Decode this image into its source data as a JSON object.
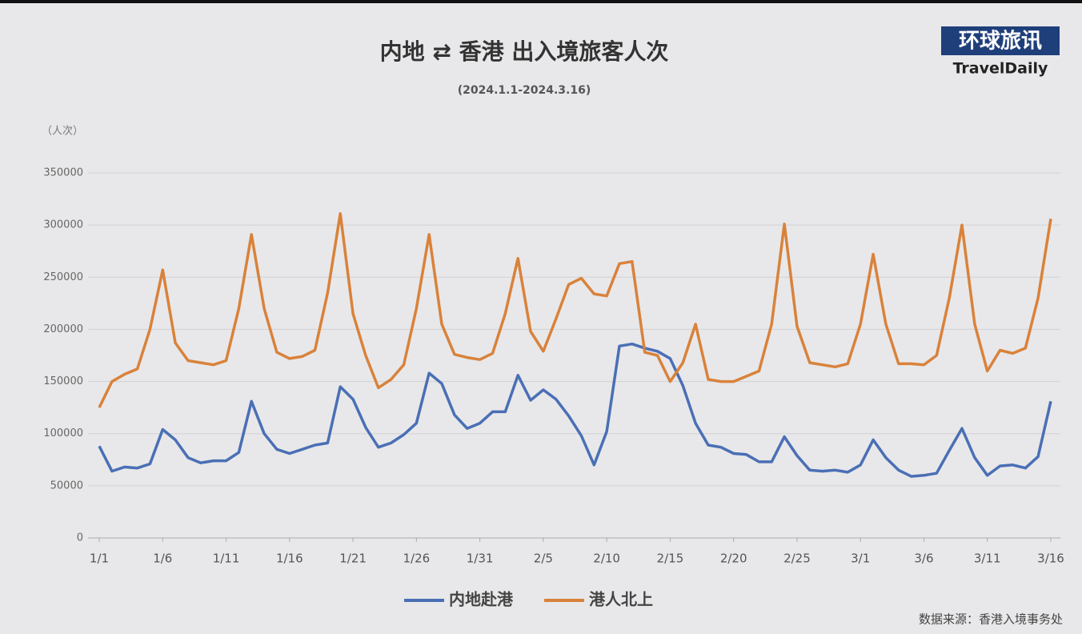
{
  "chart_data": {
    "type": "line",
    "title": "内地 ⇄ 香港 出入境旅客人次",
    "subtitle": "(2024.1.1-2024.3.16)",
    "y_label": "（人次）",
    "logo": "环球旅讯",
    "logo_subtitle": "TravelDaily",
    "source": "数据来源：香港入境事务处",
    "categories": [
      "1/1",
      null,
      null,
      null,
      null,
      "1/6",
      null,
      null,
      null,
      null,
      "1/11",
      null,
      null,
      null,
      null,
      "1/16",
      null,
      null,
      null,
      null,
      "1/21",
      null,
      null,
      null,
      null,
      "1/26",
      null,
      null,
      null,
      null,
      "1/31",
      null,
      null,
      null,
      null,
      "2/5",
      null,
      null,
      null,
      null,
      "2/10",
      null,
      null,
      null,
      null,
      "2/15",
      null,
      null,
      null,
      null,
      "2/20",
      null,
      null,
      null,
      null,
      "2/25",
      null,
      null,
      null,
      null,
      "3/1",
      null,
      null,
      null,
      null,
      "3/6",
      null,
      null,
      null,
      null,
      "3/11",
      null,
      null,
      null,
      null,
      "3/16"
    ],
    "series": [
      {
        "name": "内地赴港",
        "color": "#4a6fb5",
        "values": [
          88000,
          64000,
          68000,
          67000,
          71000,
          104000,
          94000,
          77000,
          72000,
          74000,
          74000,
          82000,
          131000,
          100000,
          85000,
          81000,
          85000,
          89000,
          91000,
          145000,
          133000,
          106000,
          87000,
          91000,
          99000,
          110000,
          158000,
          148000,
          118000,
          105000,
          110000,
          121000,
          121000,
          156000,
          132000,
          142000,
          133000,
          117000,
          98000,
          70000,
          102000,
          184000,
          186000,
          182000,
          179000,
          172000,
          146000,
          110000,
          89000,
          87000,
          81000,
          80000,
          73000,
          73000,
          97000,
          79000,
          65000,
          64000,
          65000,
          63000,
          70000,
          94000,
          77000,
          65000,
          59000,
          60000,
          62000,
          84000,
          105000,
          77000,
          60000,
          69000,
          70000,
          67000,
          78000,
          131000
        ]
      },
      {
        "name": "港人北上",
        "color": "#d9823b",
        "values": [
          125000,
          150000,
          157000,
          162000,
          200000,
          257000,
          187000,
          170000,
          168000,
          166000,
          170000,
          220000,
          291000,
          220000,
          178000,
          172000,
          174000,
          180000,
          235000,
          311000,
          215000,
          175000,
          144000,
          152000,
          166000,
          220000,
          291000,
          205000,
          176000,
          173000,
          171000,
          177000,
          215000,
          268000,
          198000,
          179000,
          210000,
          243000,
          249000,
          234000,
          232000,
          263000,
          265000,
          178000,
          175000,
          150000,
          168000,
          205000,
          152000,
          150000,
          150000,
          155000,
          160000,
          205000,
          301000,
          203000,
          168000,
          166000,
          164000,
          167000,
          205000,
          272000,
          205000,
          167000,
          167000,
          166000,
          175000,
          230000,
          300000,
          205000,
          160000,
          180000,
          177000,
          182000,
          230000,
          306000
        ]
      }
    ],
    "ylim": [
      0,
      350000
    ],
    "yticks": [
      0,
      50000,
      100000,
      150000,
      200000,
      250000,
      300000,
      350000
    ],
    "grid": true,
    "legend": "bottom"
  }
}
